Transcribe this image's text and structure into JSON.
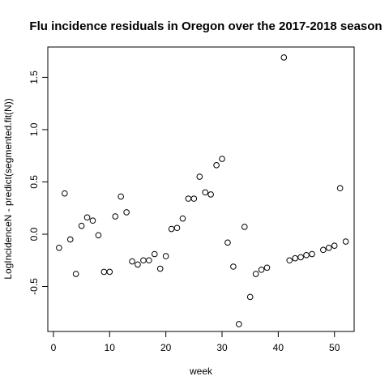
{
  "chart_data": {
    "type": "scatter",
    "title": "Flu incidence residuals in Oregon over the 2017-2018 season",
    "xlabel": "week",
    "ylabel": "LogIncidenceN - predict(segmented.fit(N))",
    "xlim": [
      -1,
      53.5
    ],
    "ylim": [
      -0.93,
      1.79
    ],
    "x_ticks": [
      0,
      10,
      20,
      30,
      40,
      50
    ],
    "y_ticks": [
      -0.5,
      0.0,
      0.5,
      1.0,
      1.5
    ],
    "x_tick_labels": [
      "0",
      "10",
      "20",
      "30",
      "40",
      "50"
    ],
    "y_tick_labels": [
      "-0.5",
      "0.0",
      "0.5",
      "1.0",
      "1.5"
    ],
    "grid": false,
    "marker": "open-circle",
    "x": [
      1,
      2,
      3,
      4,
      5,
      6,
      7,
      8,
      9,
      10,
      11,
      12,
      13,
      14,
      15,
      16,
      17,
      18,
      19,
      20,
      21,
      22,
      23,
      24,
      25,
      26,
      27,
      28,
      29,
      30,
      31,
      32,
      33,
      34,
      35,
      36,
      37,
      38,
      41,
      42,
      43,
      44,
      45,
      46,
      48,
      49,
      50,
      51,
      52
    ],
    "y": [
      -0.13,
      0.39,
      -0.05,
      -0.38,
      0.08,
      0.16,
      0.13,
      -0.01,
      -0.36,
      -0.36,
      0.17,
      0.36,
      0.21,
      -0.26,
      -0.29,
      -0.25,
      -0.25,
      -0.19,
      -0.33,
      -0.21,
      0.05,
      0.06,
      0.15,
      0.34,
      0.34,
      0.55,
      0.4,
      0.38,
      0.66,
      0.72,
      -0.08,
      -0.31,
      -0.86,
      0.07,
      -0.6,
      -0.38,
      -0.34,
      -0.32,
      1.69,
      -0.25,
      -0.23,
      -0.22,
      -0.2,
      -0.19,
      -0.15,
      -0.13,
      -0.11,
      0.44,
      -0.07
    ]
  }
}
